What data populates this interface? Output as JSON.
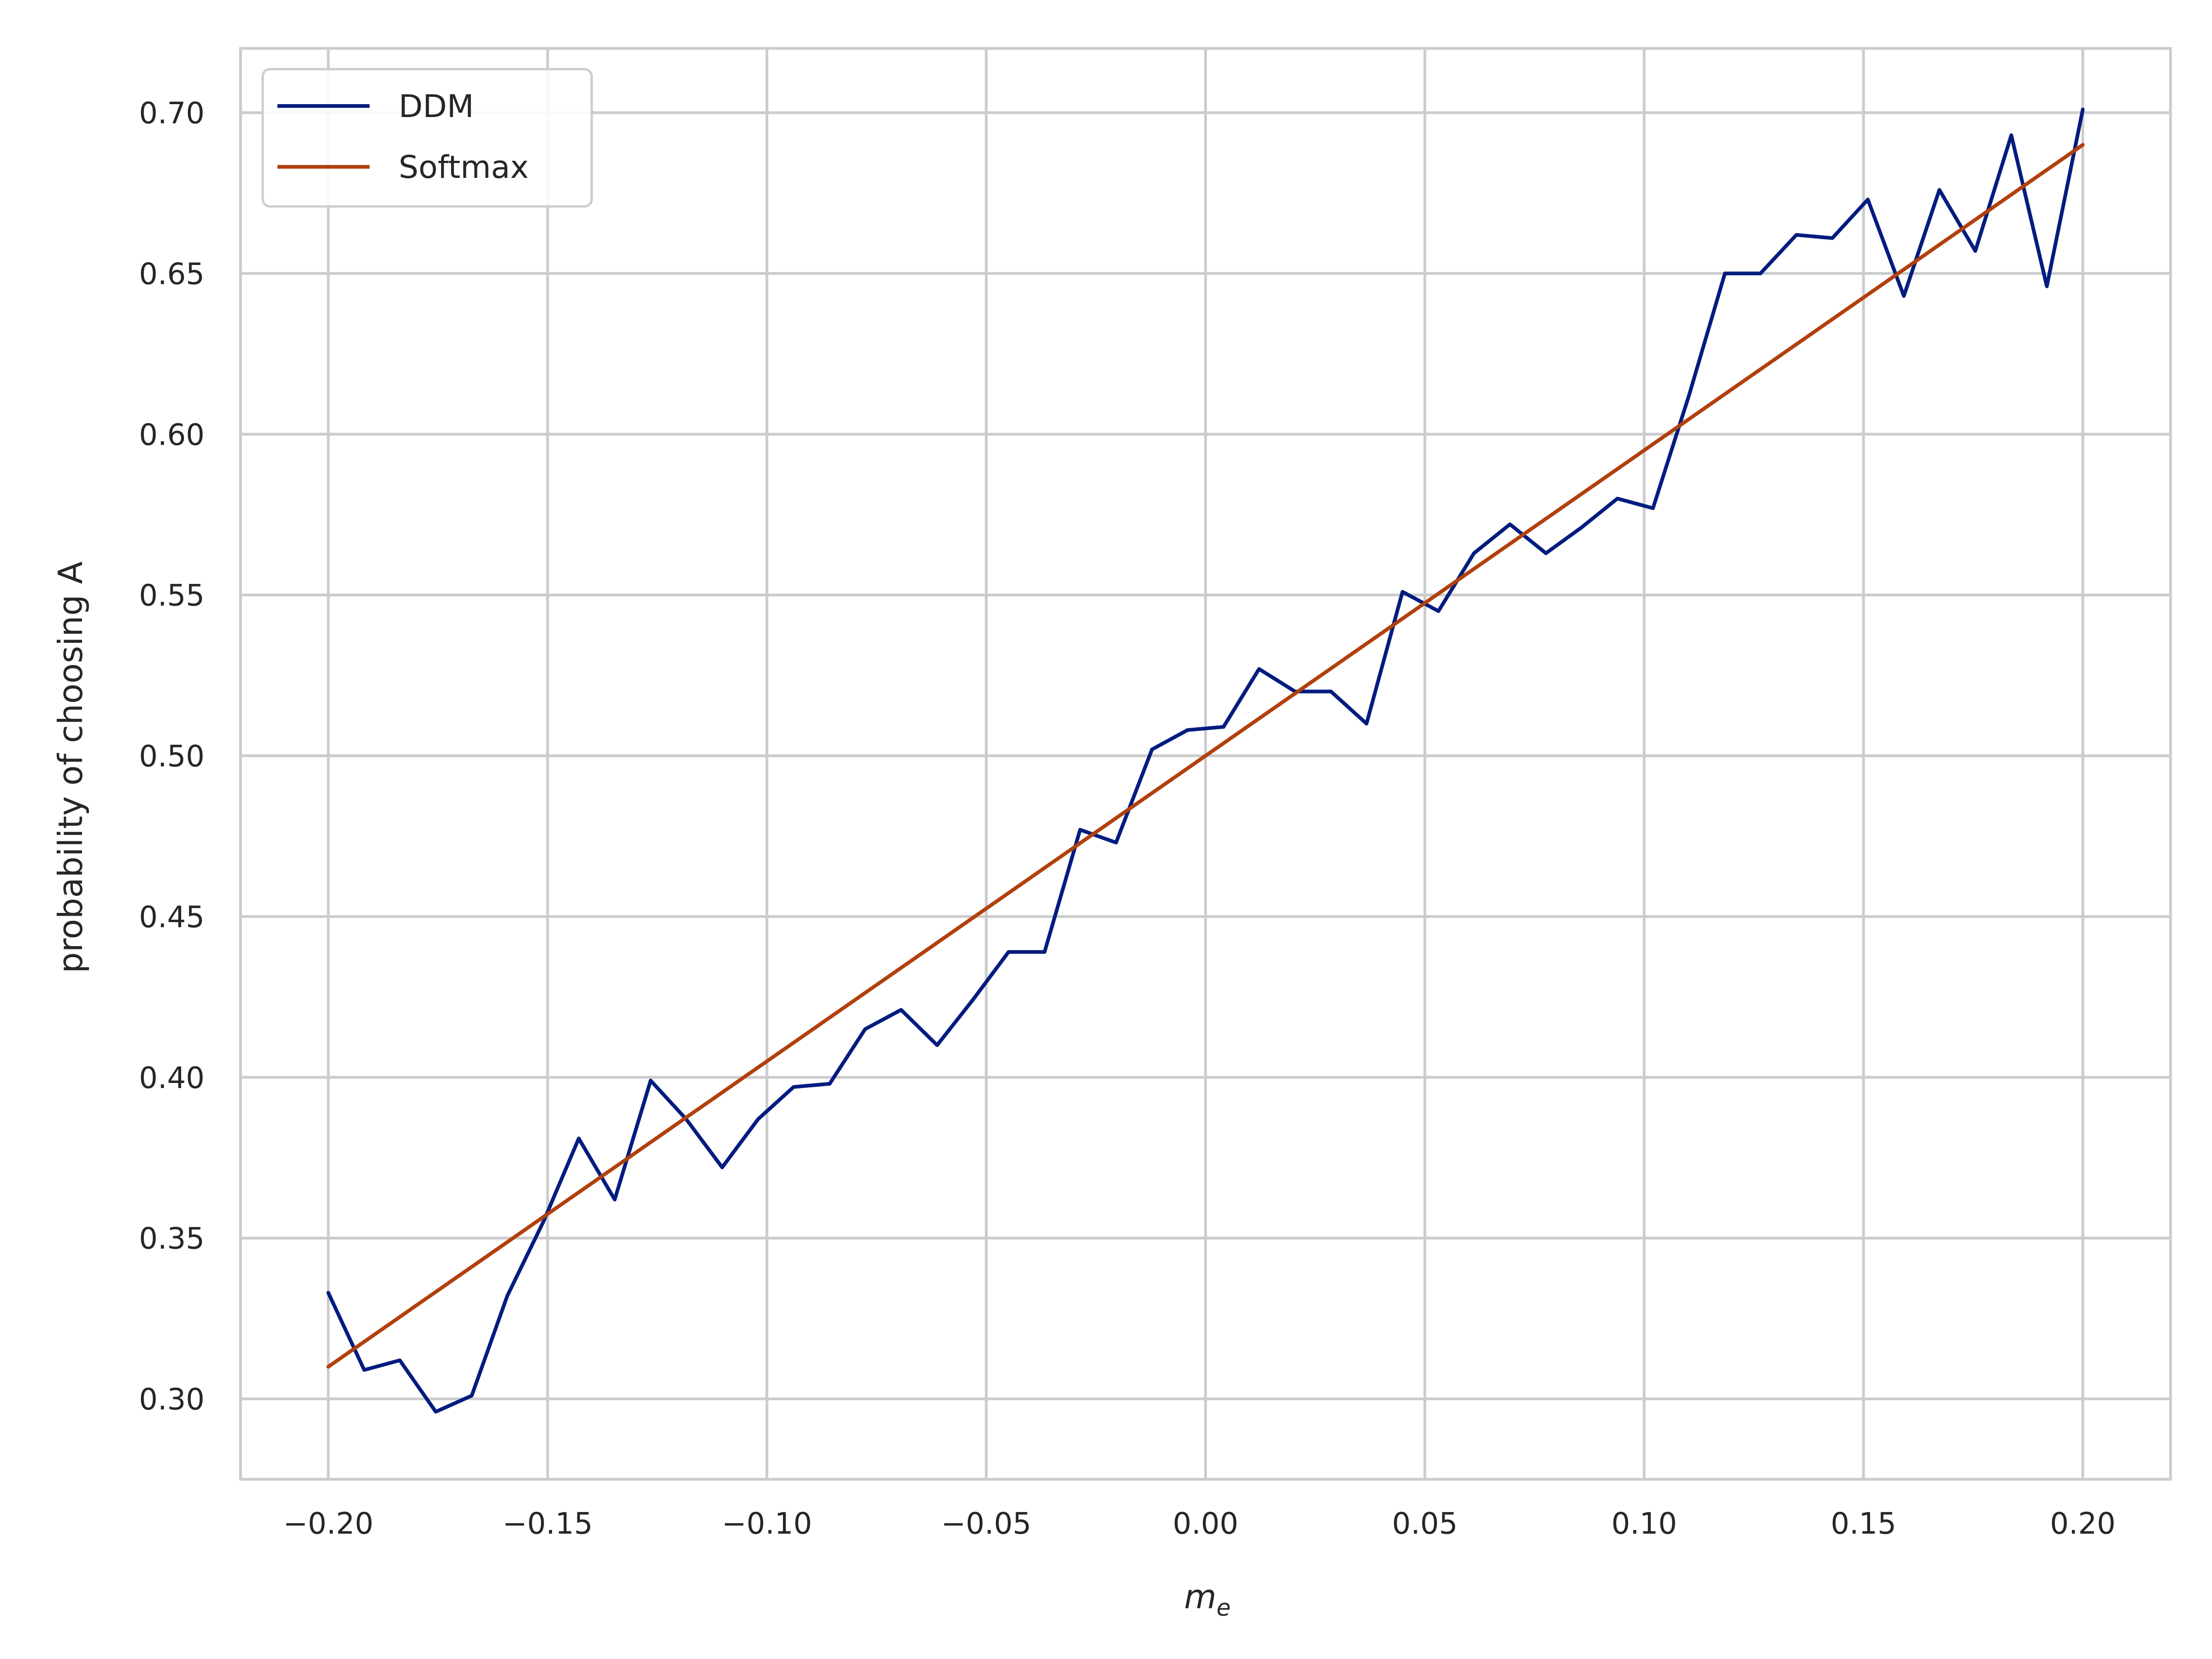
{
  "chart_data": {
    "type": "line",
    "title": "",
    "xlabel": "m",
    "xlabel_sub": "e",
    "ylabel": "probability of choosing A",
    "xlim": [
      -0.22,
      0.22
    ],
    "ylim": [
      0.275,
      0.72
    ],
    "xticks": [
      "−0.20",
      "−0.15",
      "−0.10",
      "−0.05",
      "0.00",
      "0.05",
      "0.10",
      "0.15",
      "0.20"
    ],
    "yticks": [
      "0.30",
      "0.35",
      "0.40",
      "0.45",
      "0.50",
      "0.55",
      "0.60",
      "0.65",
      "0.70"
    ],
    "grid": true,
    "legend_position": "top-left",
    "series": [
      {
        "name": "DDM",
        "color": "#001c7f",
        "x": [
          -0.2,
          -0.1918,
          -0.1837,
          -0.1755,
          -0.1673,
          -0.1592,
          -0.151,
          -0.1429,
          -0.1347,
          -0.1265,
          -0.1184,
          -0.1102,
          -0.102,
          -0.0939,
          -0.0857,
          -0.0776,
          -0.0694,
          -0.0612,
          -0.0531,
          -0.0449,
          -0.0367,
          -0.0286,
          -0.0204,
          -0.0122,
          -0.0041,
          0.0041,
          0.0122,
          0.0204,
          0.0286,
          0.0367,
          0.0449,
          0.0531,
          0.0612,
          0.0694,
          0.0776,
          0.0857,
          0.0939,
          0.102,
          0.1102,
          0.1184,
          0.1265,
          0.1347,
          0.1429,
          0.151,
          0.1592,
          0.1673,
          0.1755,
          0.1837,
          0.1918,
          0.2
        ],
        "y": [
          0.333,
          0.309,
          0.312,
          0.296,
          0.301,
          0.332,
          0.355,
          0.381,
          0.362,
          0.399,
          0.387,
          0.372,
          0.387,
          0.397,
          0.398,
          0.415,
          0.421,
          0.41,
          0.424,
          0.439,
          0.439,
          0.477,
          0.473,
          0.502,
          0.508,
          0.509,
          0.527,
          0.52,
          0.52,
          0.51,
          0.551,
          0.545,
          0.563,
          0.572,
          0.563,
          0.571,
          0.58,
          0.577,
          0.612,
          0.65,
          0.65,
          0.662,
          0.661,
          0.673,
          0.643,
          0.676,
          0.657,
          0.693,
          0.646,
          0.701
        ]
      },
      {
        "name": "Softmax",
        "color": "#b1400d",
        "x": [
          -0.2,
          0.2
        ],
        "y": [
          0.31,
          0.69
        ]
      }
    ]
  }
}
